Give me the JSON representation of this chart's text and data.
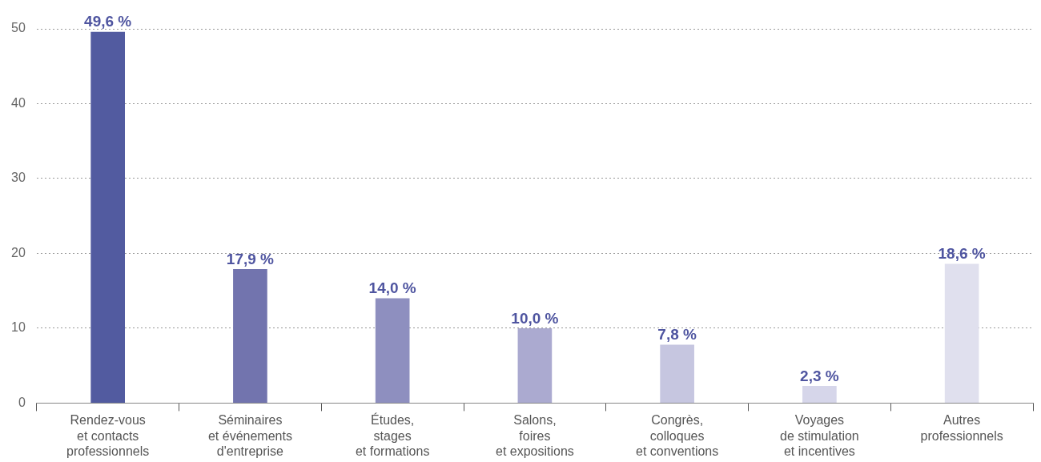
{
  "chart_data": {
    "type": "bar",
    "categories": [
      "Rendez-vous\net contacts\nprofessionnels",
      "Séminaires\net événements\nd'entreprise",
      "Études,\nstages\net formations",
      "Salons,\nfoires\net expositions",
      "Congrès,\ncolloques\net conventions",
      "Voyages\nde stimulation\net incentives",
      "Autres\nprofessionnels"
    ],
    "values": [
      49.6,
      17.9,
      14.0,
      10.0,
      7.8,
      2.3,
      18.6
    ],
    "colors": [
      "#525ba0",
      "#7274ae",
      "#8e8fbf",
      "#abaad0",
      "#c6c6e0",
      "#d6d6ea",
      "#e0e0ee"
    ],
    "value_labels": [
      "49,6 %",
      "17,9 %",
      "14,0 %",
      "10,0 %",
      "7,8 %",
      "2,3 %",
      "18,6 %"
    ],
    "ylim": [
      0,
      50
    ],
    "yticks": [
      0,
      10,
      20,
      30,
      40,
      50
    ],
    "grid": "y",
    "legend": false
  }
}
